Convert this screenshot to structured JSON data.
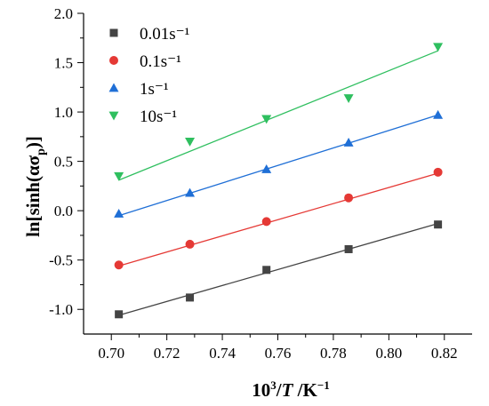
{
  "chart_data": {
    "type": "scatter",
    "xlabel": "10³/T /K⁻¹",
    "ylabel": "ln[sinh(ασp)]",
    "xlim": [
      0.69,
      0.83
    ],
    "ylim": [
      -1.25,
      2.0
    ],
    "x_ticks": [
      "0.70",
      "0.72",
      "0.74",
      "0.76",
      "0.78",
      "0.80",
      "0.82"
    ],
    "y_ticks": [
      "-1.0",
      "-0.5",
      "0.0",
      "0.5",
      "1.0",
      "1.5",
      "2.0"
    ],
    "x_tick_values": [
      0.7,
      0.72,
      0.74,
      0.76,
      0.78,
      0.8,
      0.82
    ],
    "y_tick_values": [
      -1.0,
      -0.5,
      0.0,
      0.5,
      1.0,
      1.5,
      2.0
    ],
    "legend_position": "top-left",
    "grid": false,
    "x": [
      0.7027,
      0.7283,
      0.7559,
      0.7855,
      0.8177
    ],
    "series": [
      {
        "name": "0.01s⁻¹",
        "marker": "square",
        "color": "#444444",
        "values": [
          -1.05,
          -0.88,
          -0.6,
          -0.39,
          -0.14
        ],
        "fit": [
          -1.06,
          -0.13
        ]
      },
      {
        "name": "0.1s⁻¹",
        "marker": "circle",
        "color": "#e53935",
        "values": [
          -0.55,
          -0.34,
          -0.11,
          0.13,
          0.39
        ],
        "fit": [
          -0.56,
          0.38
        ]
      },
      {
        "name": "1s⁻¹",
        "marker": "triangle-up",
        "color": "#1f6fd6",
        "values": [
          -0.03,
          0.18,
          0.42,
          0.69,
          0.97
        ],
        "fit": [
          -0.05,
          0.97
        ]
      },
      {
        "name": "10s⁻¹",
        "marker": "triangle-down",
        "color": "#2fbf5f",
        "values": [
          0.35,
          0.7,
          0.93,
          1.14,
          1.66
        ],
        "fit": [
          0.31,
          1.62
        ]
      }
    ]
  }
}
